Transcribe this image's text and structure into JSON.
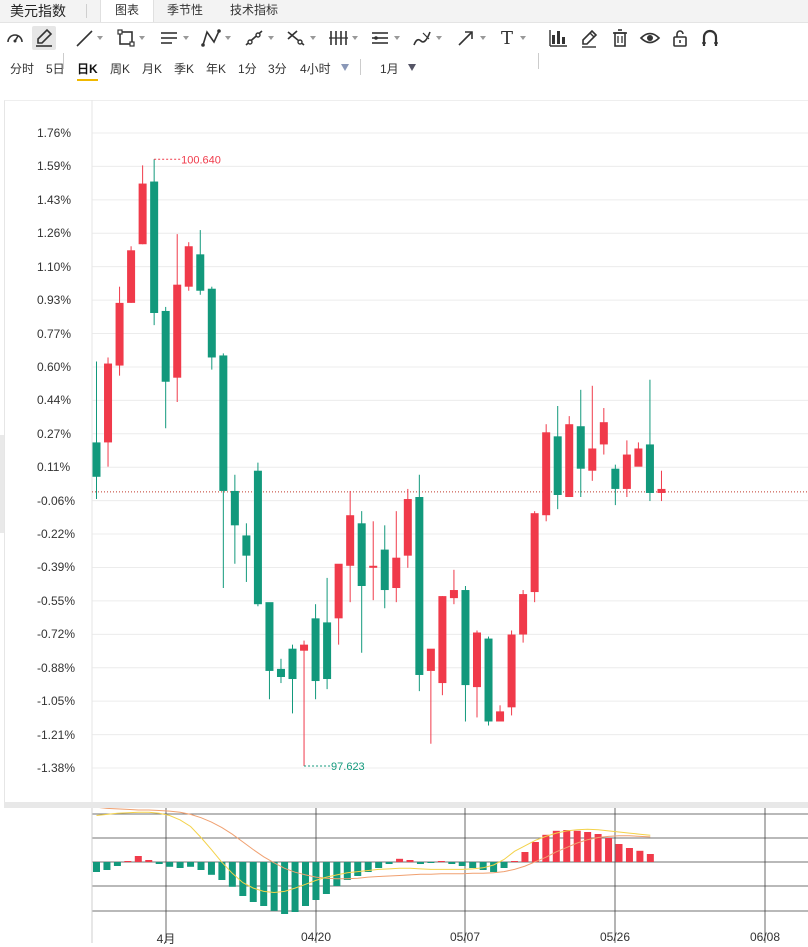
{
  "app": {
    "title": "美元指数"
  },
  "tabs": [
    {
      "label": "图表",
      "active": true
    },
    {
      "label": "季节性",
      "active": false
    },
    {
      "label": "技术指标",
      "active": false
    }
  ],
  "toolbar_icons": [
    "gauge-icon",
    "pencil-icon",
    "line-icon",
    "rectangle-icon",
    "parallel-lines-icon",
    "pattern-icon",
    "ray-icon",
    "cross-lines-icon",
    "vertical-lines-icon",
    "horizontal-levels-icon",
    "brush-icon",
    "arrow-icon",
    "text-icon",
    "indicator-chart-icon",
    "edit-icon",
    "trash-icon",
    "eye-icon",
    "lock-icon",
    "magnet-icon"
  ],
  "text_tool": {
    "label": "T"
  },
  "periods": [
    {
      "label": "分时",
      "active": false
    },
    {
      "label": "5日",
      "active": false
    },
    {
      "label": "日K",
      "active": true
    },
    {
      "label": "周K",
      "active": false
    },
    {
      "label": "月K",
      "active": false
    },
    {
      "label": "季K",
      "active": false
    },
    {
      "label": "年K",
      "active": false
    },
    {
      "label": "1分",
      "active": false
    },
    {
      "label": "3分",
      "active": false
    },
    {
      "label": "4小时",
      "active": false
    }
  ],
  "range_select": {
    "label": "1月"
  },
  "colors": {
    "up": "#f03a4a",
    "down": "#12997c",
    "accent": "#f0b800"
  },
  "chart_data": {
    "type": "candlestick",
    "y_axis_ticks": [
      "1.76%",
      "1.59%",
      "1.43%",
      "1.26%",
      "1.10%",
      "0.93%",
      "0.77%",
      "0.60%",
      "0.44%",
      "0.27%",
      "0.11%",
      "-0.06%",
      "-0.22%",
      "-0.39%",
      "-0.55%",
      "-0.72%",
      "-0.88%",
      "-1.05%",
      "-1.21%",
      "-1.38%"
    ],
    "x_axis_ticks": [
      "4月",
      "04/20",
      "05/07",
      "05/26",
      "06/08"
    ],
    "ylim_pct": [
      -1.42,
      1.8
    ],
    "reference_pct": 0.0,
    "candles": [
      [
        0.23,
        0.06,
        0.63,
        -0.05
      ],
      [
        0.23,
        0.62,
        0.65,
        0.11
      ],
      [
        0.61,
        0.92,
        1.0,
        0.56
      ],
      [
        0.92,
        1.18,
        1.2,
        0.92
      ],
      [
        1.21,
        1.51,
        1.6,
        1.21
      ],
      [
        1.52,
        0.87,
        1.63,
        0.81
      ],
      [
        0.88,
        0.53,
        0.9,
        0.3
      ],
      [
        0.55,
        1.01,
        1.26,
        0.43
      ],
      [
        1.0,
        1.2,
        1.22,
        0.98
      ],
      [
        1.16,
        0.98,
        1.28,
        0.96
      ],
      [
        0.99,
        0.65,
        1.0,
        0.59
      ],
      [
        0.66,
        -0.01,
        0.67,
        -0.49
      ],
      [
        -0.01,
        -0.18,
        0.07,
        -0.37
      ],
      [
        -0.23,
        -0.33,
        -0.17,
        -0.46
      ],
      [
        0.09,
        -0.57,
        0.13,
        -0.58
      ],
      [
        -0.56,
        -0.9,
        -0.57,
        -1.04
      ],
      [
        -0.89,
        -0.93,
        -0.84,
        -0.96
      ],
      [
        -0.79,
        -0.94,
        -0.77,
        -1.11
      ],
      [
        -0.8,
        -0.77,
        -0.75,
        -1.37
      ],
      [
        -0.64,
        -0.95,
        -0.57,
        -1.04
      ],
      [
        -0.66,
        -0.94,
        -0.44,
        -0.99
      ],
      [
        -0.64,
        -0.37,
        -0.4,
        -0.77
      ],
      [
        -0.38,
        -0.13,
        -0.01,
        -0.56
      ],
      [
        -0.17,
        -0.48,
        -0.11,
        -0.81
      ],
      [
        -0.39,
        -0.38,
        -0.16,
        -0.55
      ],
      [
        -0.3,
        -0.5,
        -0.18,
        -0.59
      ],
      [
        -0.49,
        -0.34,
        -0.11,
        -0.56
      ],
      [
        -0.33,
        -0.05,
        0.0,
        -0.39
      ],
      [
        -0.04,
        -0.92,
        0.07,
        -1.0
      ],
      [
        -0.9,
        -0.79,
        -0.9,
        -1.26
      ],
      [
        -0.96,
        -0.53,
        -0.53,
        -1.02
      ],
      [
        -0.54,
        -0.5,
        -0.4,
        -0.57
      ],
      [
        -0.5,
        -0.97,
        -0.48,
        -1.15
      ],
      [
        -0.98,
        -0.71,
        -0.7,
        -1.13
      ],
      [
        -0.74,
        -1.15,
        -0.73,
        -1.17
      ],
      [
        -1.15,
        -1.1,
        -1.07,
        -1.13
      ],
      [
        -1.08,
        -0.72,
        -0.7,
        -1.12
      ],
      [
        -0.72,
        -0.52,
        -0.5,
        -0.76
      ],
      [
        -0.51,
        -0.12,
        -0.11,
        -0.56
      ],
      [
        -0.13,
        0.28,
        0.32,
        -0.16
      ],
      [
        0.26,
        -0.03,
        0.41,
        -0.1
      ],
      [
        -0.04,
        0.32,
        0.36,
        -0.02
      ],
      [
        0.31,
        0.1,
        0.49,
        -0.04
      ],
      [
        0.09,
        0.2,
        0.51,
        0.04
      ],
      [
        0.22,
        0.33,
        0.4,
        0.17
      ],
      [
        0.1,
        0.0,
        0.12,
        -0.08
      ],
      [
        0.0,
        0.17,
        0.24,
        -0.04
      ],
      [
        0.11,
        0.2,
        0.23,
        0.12
      ],
      [
        0.22,
        -0.02,
        0.54,
        -0.06
      ],
      [
        -0.02,
        0.0,
        0.09,
        -0.06
      ]
    ],
    "high_annotation": {
      "label": "100.640"
    },
    "low_annotation": {
      "label": "97.623"
    },
    "macd_hist": [
      -0.25,
      -0.2,
      -0.1,
      0.02,
      0.15,
      0.05,
      -0.05,
      -0.12,
      -0.15,
      -0.12,
      -0.2,
      -0.32,
      -0.45,
      -0.62,
      -0.85,
      -1.0,
      -1.1,
      -1.22,
      -1.3,
      -1.25,
      -1.1,
      -0.95,
      -0.8,
      -0.6,
      -0.45,
      -0.35,
      -0.25,
      -0.15,
      -0.05,
      0.08,
      0.05,
      -0.05,
      -0.02,
      0.0,
      -0.05,
      -0.1,
      -0.15,
      -0.2,
      -0.25,
      -0.15,
      0.0,
      0.25,
      0.5,
      0.68,
      0.78,
      0.8,
      0.78,
      0.75,
      0.7,
      0.6,
      0.45,
      0.35,
      0.28,
      0.2
    ],
    "macd_dif": [
      0.7,
      0.72,
      0.74,
      0.75,
      0.76,
      0.76,
      0.74,
      0.7,
      0.62,
      0.5,
      0.3,
      0.08,
      -0.15,
      -0.35,
      -0.52,
      -0.62,
      -0.68,
      -0.7,
      -0.68,
      -0.62,
      -0.55,
      -0.48,
      -0.42,
      -0.38,
      -0.34,
      -0.32,
      -0.3,
      -0.28,
      -0.27,
      -0.26,
      -0.26,
      -0.27,
      -0.28,
      -0.28,
      -0.28,
      -0.28,
      -0.27,
      -0.25,
      -0.2,
      -0.1,
      0.05,
      0.15,
      0.25,
      0.32,
      0.38,
      0.42,
      0.44,
      0.45,
      0.44,
      0.42,
      0.4,
      0.38,
      0.36,
      0.34
    ],
    "macd_dea": [
      0.85,
      0.83,
      0.82,
      0.81,
      0.8,
      0.8,
      0.79,
      0.78,
      0.76,
      0.72,
      0.66,
      0.58,
      0.48,
      0.36,
      0.22,
      0.08,
      -0.05,
      -0.16,
      -0.26,
      -0.33,
      -0.38,
      -0.42,
      -0.44,
      -0.45,
      -0.45,
      -0.44,
      -0.42,
      -0.41,
      -0.4,
      -0.39,
      -0.38,
      -0.37,
      -0.37,
      -0.36,
      -0.36,
      -0.36,
      -0.35,
      -0.35,
      -0.34,
      -0.32,
      -0.28,
      -0.22,
      -0.14,
      -0.06,
      0.04,
      0.12,
      0.2,
      0.26,
      0.3,
      0.32,
      0.33,
      0.33,
      0.32,
      0.31
    ]
  }
}
